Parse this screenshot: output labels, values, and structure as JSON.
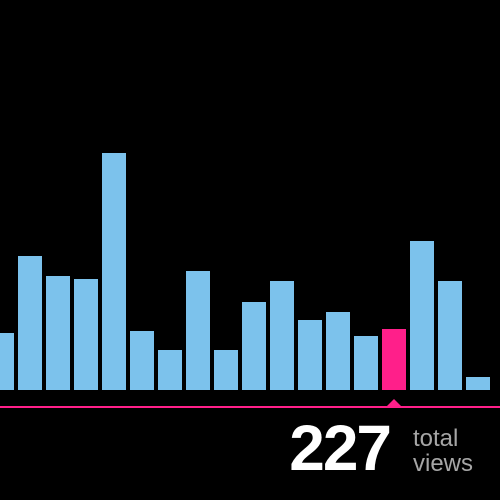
{
  "chart_data": {
    "type": "bar",
    "values": [
      57,
      134,
      114,
      111,
      237,
      59,
      40,
      119,
      40,
      88,
      109,
      70,
      78,
      54,
      61,
      149,
      109,
      13
    ],
    "highlight_index": 14,
    "bar_color": "#7cc2ec",
    "highlight_color": "#ff1f8a",
    "baseline_color": "#ff1f8a",
    "background": "#000000",
    "ylim": [
      0,
      250
    ]
  },
  "summary": {
    "total": "227",
    "label_line1": "total",
    "label_line2": "views"
  }
}
